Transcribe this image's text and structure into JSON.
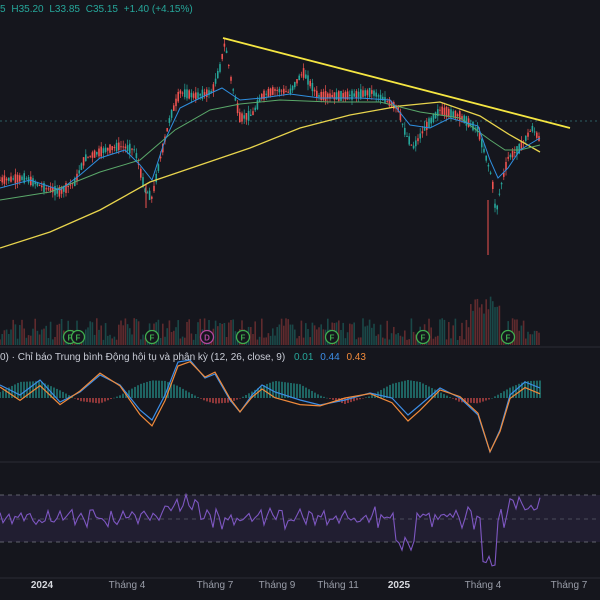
{
  "header": {
    "open_frag": "5",
    "high": "H35.20",
    "low": "L33.85",
    "close": "C35.15",
    "change": "+1.40 (+4.15%)"
  },
  "macd": {
    "label": "0) · Chỉ báo Trung bình Động hội tụ và phân kỳ (12, 26, close, 9)",
    "v1": "0.01",
    "v2": "0.44",
    "v3": "0.43"
  },
  "events": [
    "F",
    "F",
    "F",
    "D",
    "F",
    "F",
    "F",
    "F"
  ],
  "xaxis": [
    {
      "label": "2024",
      "bold": true
    },
    {
      "label": "Tháng 4",
      "bold": false
    },
    {
      "label": "Tháng 7",
      "bold": false
    },
    {
      "label": "Tháng 9",
      "bold": false
    },
    {
      "label": "Tháng 11",
      "bold": false
    },
    {
      "label": "2025",
      "bold": true
    },
    {
      "label": "Tháng 4",
      "bold": false
    },
    {
      "label": "Tháng 7",
      "bold": false
    }
  ],
  "colors": {
    "up": "#26a69a",
    "down": "#ef5350",
    "ma_fast": "#2f8fe0",
    "ma_mid": "#5aa86a",
    "ma_long": "#e8d44d",
    "trendline": "#f5e642",
    "macd_line": "#3d8ee6",
    "signal_line": "#f08a3b",
    "rsi": "#7e57c2"
  },
  "chart_data": {
    "type": "line",
    "series": [],
    "annotations": [
      "trendline connecting the July 2024 high and the May 2025 high"
    ]
  }
}
